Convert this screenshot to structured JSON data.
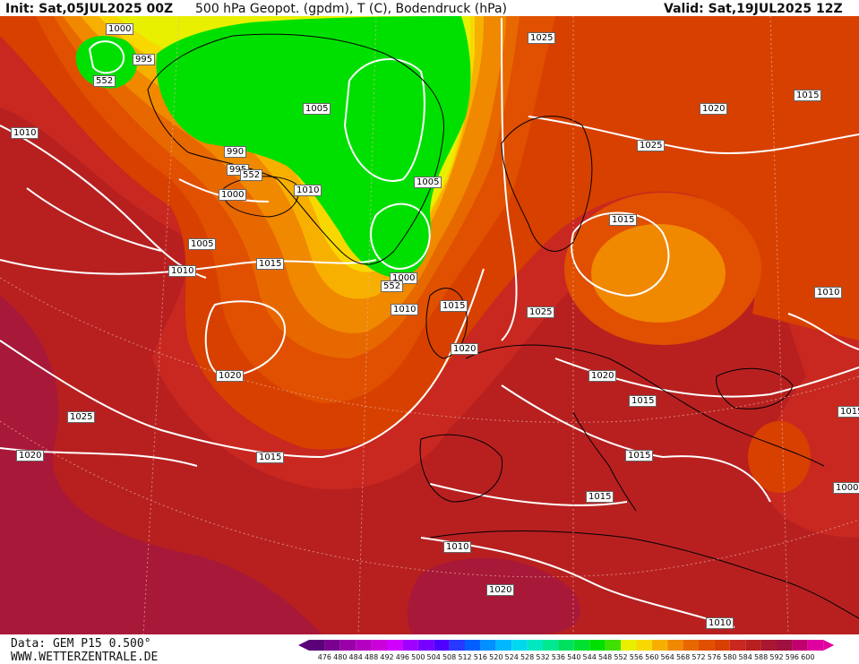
{
  "header": {
    "init_label": "Init: Sat,05JUL2025 00Z",
    "title": "500 hPa Geopot. (gpdm), T (C), Bodendruck (hPa)",
    "valid_label": "Valid: Sat,19JUL2025 12Z"
  },
  "footer": {
    "model": "Data: GEM P15 0.500°",
    "source": "WWW.WETTERZENTRALE.DE"
  },
  "legend": {
    "ticks": [
      "476",
      "480",
      "484",
      "488",
      "492",
      "496",
      "500",
      "504",
      "508",
      "512",
      "516",
      "520",
      "524",
      "528",
      "532",
      "536",
      "540",
      "544",
      "548",
      "552",
      "556",
      "560",
      "564",
      "568",
      "572",
      "576",
      "580",
      "584",
      "588",
      "592",
      "596",
      "600"
    ],
    "colors": [
      "#5a0078",
      "#7a0090",
      "#9a00a8",
      "#b400c0",
      "#cc00d8",
      "#d000ff",
      "#a000ff",
      "#7800ff",
      "#5000ff",
      "#2838ff",
      "#0060ff",
      "#0090ff",
      "#00b8ff",
      "#00d8f0",
      "#00e8c0",
      "#00e890",
      "#00e060",
      "#00e030",
      "#00e000",
      "#40e000",
      "#e8f000",
      "#f8d800",
      "#f8b000",
      "#f08800",
      "#e86800",
      "#e05000",
      "#d84000",
      "#c82820",
      "#b82020",
      "#a81830",
      "#a01040",
      "#c00070",
      "#e000a0"
    ]
  },
  "pressure_labels": [
    {
      "text": "1000"
    },
    {
      "text": "995"
    },
    {
      "text": "552"
    },
    {
      "text": "1010"
    },
    {
      "text": "1005"
    },
    {
      "text": "990"
    },
    {
      "text": "995"
    },
    {
      "text": "552"
    },
    {
      "text": "1000"
    },
    {
      "text": "1010"
    },
    {
      "text": "1005"
    },
    {
      "text": "1005"
    },
    {
      "text": "1010"
    },
    {
      "text": "1015"
    },
    {
      "text": "1000"
    },
    {
      "text": "552"
    },
    {
      "text": "1010"
    },
    {
      "text": "1025"
    },
    {
      "text": "1015"
    },
    {
      "text": "1020"
    },
    {
      "text": "1025"
    },
    {
      "text": "1020"
    },
    {
      "text": "1015"
    },
    {
      "text": "1020"
    },
    {
      "text": "1015"
    },
    {
      "text": "1010"
    },
    {
      "text": "1020"
    },
    {
      "text": "1025"
    },
    {
      "text": "1025"
    },
    {
      "text": "1020"
    },
    {
      "text": "1015"
    },
    {
      "text": "1015"
    },
    {
      "text": "1015"
    },
    {
      "text": "1015"
    },
    {
      "text": "1010"
    },
    {
      "text": "1020"
    },
    {
      "text": "1010"
    },
    {
      "text": "1000"
    },
    {
      "text": "1015"
    }
  ]
}
